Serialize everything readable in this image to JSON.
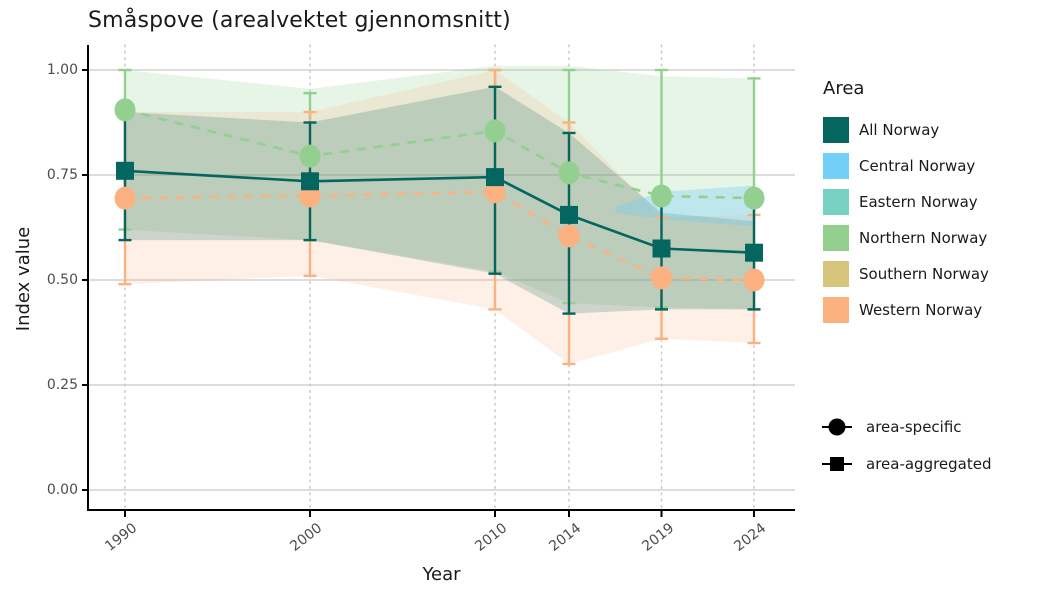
{
  "title": "Småspove (arealvektet gjennomsnitt)",
  "axes": {
    "x_label": "Year",
    "y_label": "Index value",
    "x_ticks": [
      "1990",
      "2000",
      "2010",
      "2014",
      "2019",
      "2024"
    ],
    "y_ticks": [
      {
        "label": "0.00",
        "value": 0.0
      },
      {
        "label": "0.25",
        "value": 0.25
      },
      {
        "label": "0.50",
        "value": 0.5
      },
      {
        "label": "0.75",
        "value": 0.75
      },
      {
        "label": "1.00",
        "value": 1.0
      }
    ]
  },
  "legend": {
    "title": "Area",
    "items": [
      {
        "label": "All Norway",
        "color": "#056660"
      },
      {
        "label": "Central Norway",
        "color": "#72CFF8"
      },
      {
        "label": "Eastern Norway",
        "color": "#77D2C3"
      },
      {
        "label": "Northern Norway",
        "color": "#93D08F"
      },
      {
        "label": "Southern Norway",
        "color": "#D8C57C"
      },
      {
        "label": "Western Norway",
        "color": "#FCB280"
      }
    ]
  },
  "shape_legend": [
    {
      "shape": "circle",
      "label": "area-specific"
    },
    {
      "shape": "square",
      "label": "area-aggregated"
    }
  ],
  "chart_data": {
    "type": "line",
    "title": "Småspove (arealvektet gjennomsnitt)",
    "xlabel": "Year",
    "ylabel": "Index value",
    "x": [
      1990,
      2000,
      2010,
      2014,
      2019,
      2024
    ],
    "ylim": [
      0,
      1
    ],
    "grid": "horizontal-solid, vertical-dotted",
    "legend_position": "right",
    "series": [
      {
        "name": "Northern Norway",
        "role": "area-specific",
        "marker": "circle",
        "line_style": "dashed",
        "color": "#93D08F",
        "band_alpha": 0.22,
        "values": [
          0.905,
          0.795,
          0.855,
          0.755,
          0.7,
          0.695
        ],
        "err_low": [
          0.62,
          0.595,
          0.52,
          0.445,
          0.435,
          0.43
        ],
        "err_high": [
          1.0,
          0.945,
          1.0,
          1.0,
          1.0,
          0.98
        ],
        "band_low": [
          0.62,
          0.595,
          0.52,
          0.445,
          0.435,
          0.43
        ],
        "band_high": [
          1.0,
          0.955,
          1.01,
          1.01,
          0.985,
          0.98
        ]
      },
      {
        "name": "Western Norway",
        "role": "area-specific",
        "marker": "circle",
        "line_style": "dashed",
        "color": "#FCB280",
        "band_alpha": 0.2,
        "values": [
          0.695,
          0.7,
          0.71,
          0.605,
          0.505,
          0.5
        ],
        "err_low": [
          0.49,
          0.51,
          0.43,
          0.3,
          0.36,
          0.35
        ],
        "err_high": [
          0.9,
          0.9,
          1.0,
          0.875,
          0.65,
          0.655
        ],
        "band_low": [
          0.49,
          0.51,
          0.43,
          0.3,
          0.36,
          0.35
        ],
        "band_high": [
          0.9,
          0.9,
          1.0,
          0.875,
          0.65,
          0.655
        ]
      },
      {
        "name": "All Norway",
        "role": "area-aggregated",
        "marker": "square",
        "line_style": "solid",
        "color": "#056660",
        "band_alpha": 0.2,
        "values": [
          0.76,
          0.735,
          0.745,
          0.655,
          0.575,
          0.565
        ],
        "err_low": [
          0.595,
          0.595,
          0.515,
          0.42,
          0.43,
          0.43
        ],
        "err_high": [
          0.895,
          0.875,
          0.96,
          0.85,
          0.69,
          0.685
        ],
        "band_low": [
          0.595,
          0.595,
          0.515,
          0.42,
          0.43,
          0.43
        ],
        "band_high": [
          0.9,
          0.875,
          0.96,
          0.85,
          0.66,
          0.64
        ]
      },
      {
        "name": "Central Norway",
        "role": "band-only",
        "color": "#72CFF8",
        "band_alpha": 0.35,
        "band_x": [
          2016.5,
          2019,
          2024
        ],
        "band_low": [
          0.66,
          0.645,
          0.628
        ],
        "band_high": [
          0.675,
          0.71,
          0.725
        ]
      }
    ]
  }
}
